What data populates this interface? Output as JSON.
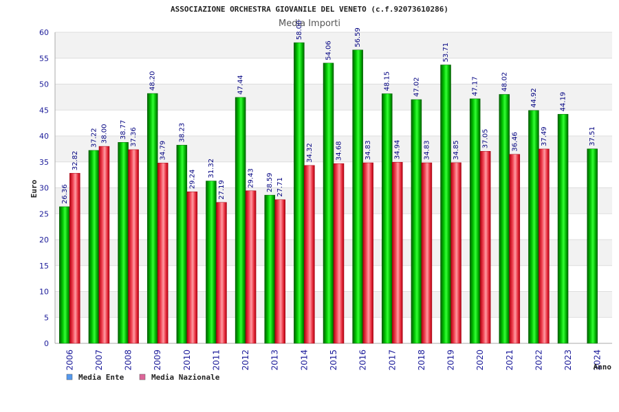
{
  "chart_data": {
    "type": "bar",
    "title": "ASSOCIAZIONE ORCHESTRA GIOVANILE DEL VENETO (c.f.92073610286)",
    "subtitle": "Media Importi",
    "xlabel": "Anno",
    "ylabel": "Euro",
    "ylim": [
      0,
      60
    ],
    "yticks": [
      0,
      5,
      10,
      15,
      20,
      25,
      30,
      35,
      40,
      45,
      50,
      55,
      60
    ],
    "grid": "horizontal",
    "legend_position": "bottom-left",
    "categories": [
      "2006",
      "2007",
      "2008",
      "2009",
      "2010",
      "2011",
      "2012",
      "2013",
      "2014",
      "2015",
      "2016",
      "2017",
      "2018",
      "2019",
      "2020",
      "2021",
      "2022",
      "2023",
      "2024"
    ],
    "series": [
      {
        "name": "Media Ente",
        "color": "#00b000",
        "legend_color": "#5599ee",
        "values": [
          26.36,
          37.22,
          38.77,
          48.2,
          38.23,
          31.32,
          47.44,
          28.59,
          58.0,
          54.06,
          56.59,
          48.15,
          47.02,
          53.71,
          47.17,
          48.02,
          44.92,
          44.19,
          37.51
        ],
        "labels": [
          "26.36",
          "37.22",
          "38.77",
          "48.20",
          "38.23",
          "31.32",
          "47.44",
          "28.59",
          "58.00",
          "54.06",
          "56.59",
          "48.15",
          "47.02",
          "53.71",
          "47.17",
          "48.02",
          "44.92",
          "44.19",
          "37.51"
        ]
      },
      {
        "name": "Media Nazionale",
        "color": "#e02020",
        "legend_color": "#dd6699",
        "values": [
          32.82,
          38.0,
          37.36,
          34.79,
          29.24,
          27.19,
          29.43,
          27.71,
          34.32,
          34.68,
          34.83,
          34.94,
          34.83,
          34.85,
          37.05,
          36.46,
          37.49,
          null,
          null
        ],
        "labels": [
          "32.82",
          "38.00",
          "37.36",
          "34.79",
          "29.24",
          "27.19",
          "29.43",
          "27.71",
          "34.32",
          "34.68",
          "34.83",
          "34.94",
          "34.83",
          "34.85",
          "37.05",
          "36.46",
          "37.49",
          "",
          ""
        ]
      }
    ]
  }
}
